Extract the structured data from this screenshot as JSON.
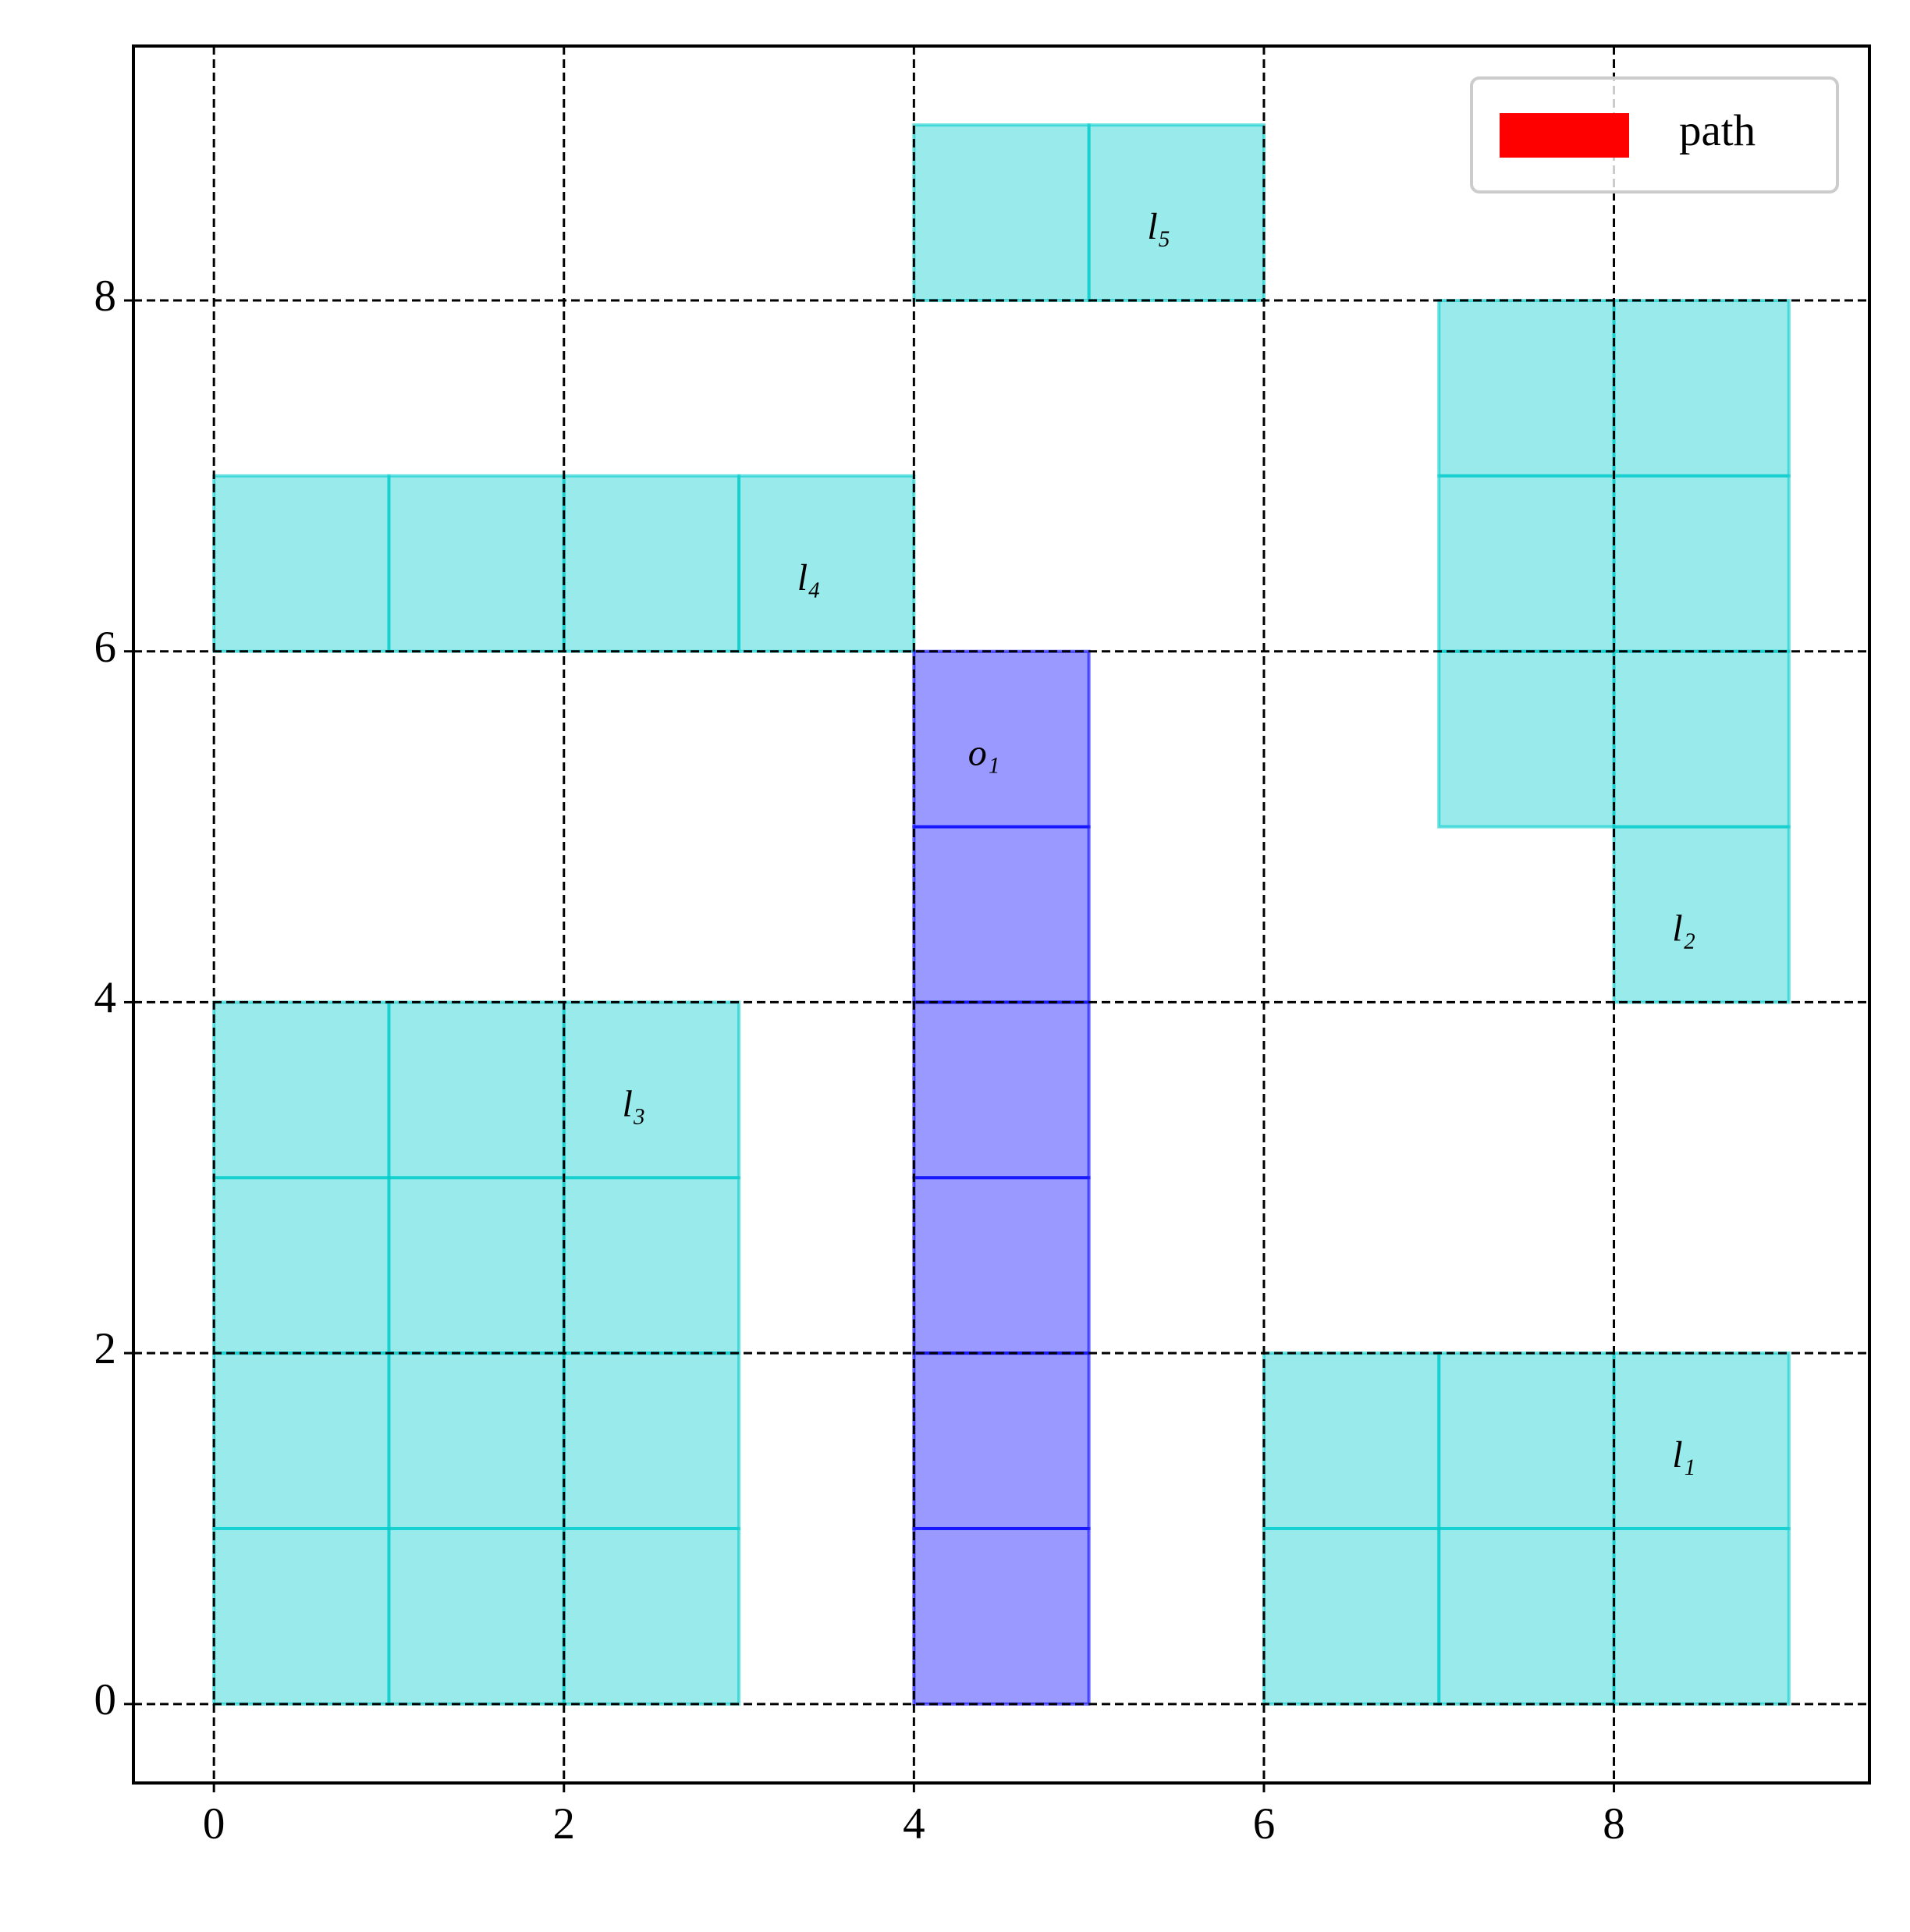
{
  "chart_data": {
    "type": "grid",
    "xlim": [
      -0.46,
      9.46
    ],
    "ylim": [
      -0.45,
      9.45
    ],
    "xticks": [
      0,
      2,
      4,
      6,
      8
    ],
    "yticks": [
      0,
      2,
      4,
      6,
      8
    ],
    "grid": true,
    "legend_position": "upper right",
    "series": [
      {
        "name": "path",
        "color": "#ff0000"
      }
    ],
    "regions": [
      {
        "label": "l₁",
        "color": "#00cccc",
        "cells": [
          [
            6,
            0
          ],
          [
            7,
            0
          ],
          [
            8,
            0
          ],
          [
            6,
            1
          ],
          [
            7,
            1
          ],
          [
            8,
            1
          ]
        ]
      },
      {
        "label": "l₂",
        "color": "#00cccc",
        "cells": [
          [
            7,
            5
          ],
          [
            7,
            6
          ],
          [
            7,
            7
          ],
          [
            8,
            5
          ],
          [
            8,
            6
          ],
          [
            8,
            7
          ],
          [
            8,
            4
          ]
        ]
      },
      {
        "label": "l₃",
        "color": "#00cccc",
        "cells": [
          [
            0,
            0
          ],
          [
            1,
            0
          ],
          [
            2,
            0
          ],
          [
            0,
            1
          ],
          [
            1,
            1
          ],
          [
            2,
            1
          ],
          [
            0,
            2
          ],
          [
            1,
            2
          ],
          [
            2,
            2
          ],
          [
            0,
            3
          ],
          [
            1,
            3
          ],
          [
            2,
            3
          ]
        ]
      },
      {
        "label": "l₄",
        "color": "#00cccc",
        "cells": [
          [
            0,
            6
          ],
          [
            1,
            6
          ],
          [
            2,
            6
          ],
          [
            3,
            6
          ]
        ]
      },
      {
        "label": "l₅",
        "color": "#00cccc",
        "cells": [
          [
            4,
            8
          ],
          [
            5,
            8
          ]
        ]
      },
      {
        "label": "o₁",
        "color": "#0000ff",
        "cells": [
          [
            4,
            0
          ],
          [
            4,
            1
          ],
          [
            4,
            2
          ],
          [
            4,
            3
          ],
          [
            4,
            4
          ],
          [
            4,
            5
          ]
        ]
      }
    ]
  }
}
